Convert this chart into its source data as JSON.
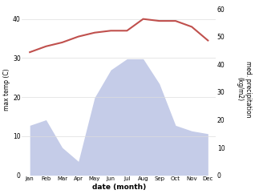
{
  "months": [
    "Jan",
    "Feb",
    "Mar",
    "Apr",
    "May",
    "Jun",
    "Jul",
    "Aug",
    "Sep",
    "Oct",
    "Nov",
    "Dec"
  ],
  "x": [
    0,
    1,
    2,
    3,
    4,
    5,
    6,
    7,
    8,
    9,
    10,
    11
  ],
  "temp": [
    31.5,
    33.0,
    34.0,
    35.5,
    36.5,
    37.0,
    37.0,
    40.0,
    39.5,
    39.5,
    38.0,
    34.5
  ],
  "precip": [
    18,
    20,
    10,
    5,
    28,
    38,
    42,
    42,
    33,
    18,
    16,
    15
  ],
  "temp_color": "#c0504d",
  "precip_fill_color": "#c5cce8",
  "temp_ylabel": "max temp (C)",
  "precip_ylabel": "med. precipitation\n(kg/m2)",
  "xlabel": "date (month)",
  "ylim_temp": [
    0,
    44
  ],
  "ylim_precip": [
    0,
    62
  ],
  "yticks_temp": [
    0,
    10,
    20,
    30,
    40
  ],
  "yticks_precip": [
    0,
    10,
    20,
    30,
    40,
    50,
    60
  ],
  "bg_color": "#ffffff"
}
